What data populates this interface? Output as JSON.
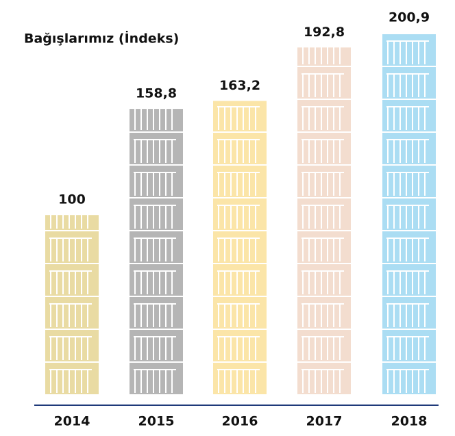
{
  "chart_data": {
    "type": "bar",
    "title": "Bağışlarımız (İndeks)",
    "categories": [
      "2014",
      "2015",
      "2016",
      "2017",
      "2018"
    ],
    "values": [
      100,
      158.8,
      163.2,
      192.8,
      200.9
    ],
    "value_labels": [
      "100",
      "158,8",
      "163,2",
      "192,8",
      "200,9"
    ],
    "colors": [
      "#e9dba3",
      "#b5b5b5",
      "#fbe5a8",
      "#f3ddcf",
      "#abddf3"
    ]
  }
}
